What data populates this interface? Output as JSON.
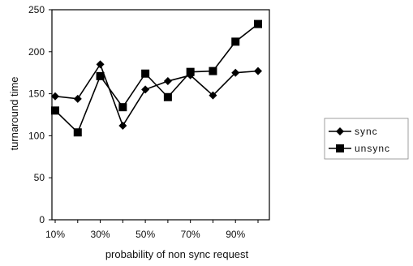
{
  "chart_data": {
    "type": "line",
    "title": "",
    "xlabel": "probability of non sync request",
    "ylabel": "turnaround time",
    "x": [
      1,
      2,
      3,
      4,
      5,
      6,
      7,
      8,
      9,
      10
    ],
    "xtick_labels": [
      {
        "at": 1,
        "label": "10%"
      },
      {
        "at": 3,
        "label": "30%"
      },
      {
        "at": 5,
        "label": "50%"
      },
      {
        "at": 7,
        "label": "70%"
      },
      {
        "at": 9,
        "label": "90%"
      }
    ],
    "ylim": [
      0,
      250
    ],
    "yticks": [
      0,
      50,
      100,
      150,
      200,
      250
    ],
    "grid": false,
    "legend_position": "right",
    "series": [
      {
        "name": "sync",
        "marker": "diamond",
        "color": "#000000",
        "values": [
          147,
          144,
          185,
          112,
          155,
          165,
          172,
          148,
          175,
          177
        ]
      },
      {
        "name": "unsync",
        "marker": "square",
        "color": "#000000",
        "values": [
          130,
          104,
          171,
          134,
          174,
          146,
          176,
          177,
          212,
          233
        ]
      }
    ]
  }
}
